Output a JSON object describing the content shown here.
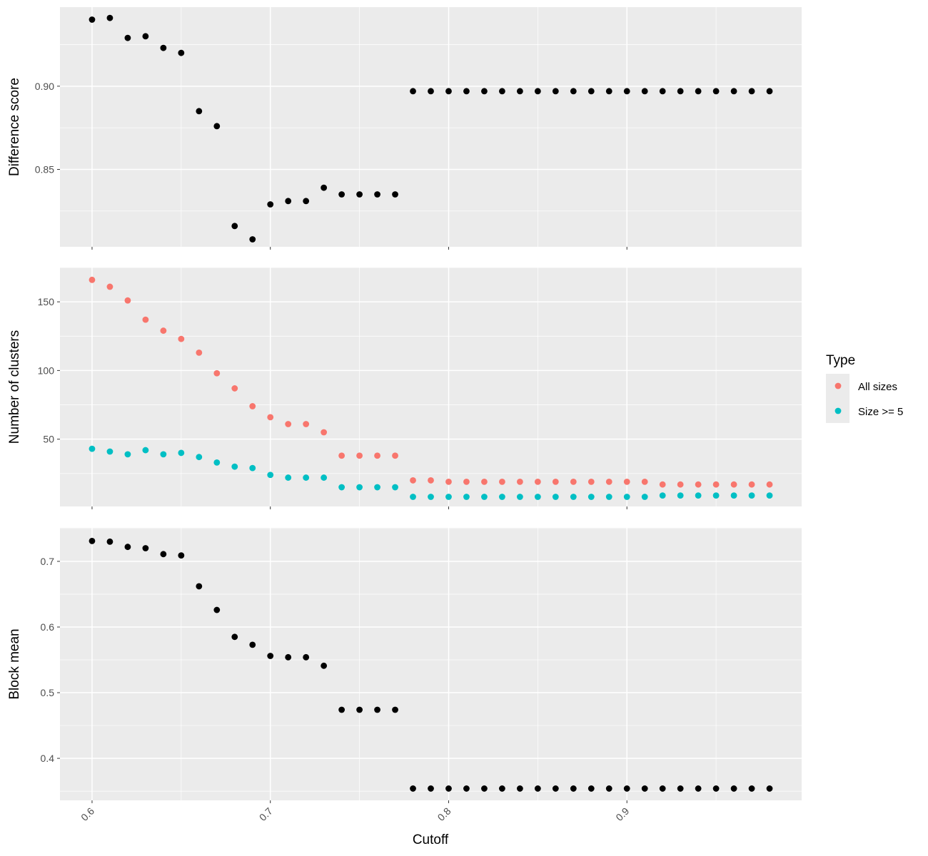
{
  "chart_data": {
    "type": "scatter",
    "xlabel": "Cutoff",
    "x": [
      0.6,
      0.61,
      0.62,
      0.63,
      0.64,
      0.65,
      0.66,
      0.67,
      0.68,
      0.69,
      0.7,
      0.71,
      0.72,
      0.73,
      0.74,
      0.75,
      0.76,
      0.77,
      0.78,
      0.79,
      0.8,
      0.81,
      0.82,
      0.83,
      0.84,
      0.85,
      0.86,
      0.87,
      0.88,
      0.89,
      0.9,
      0.91,
      0.92,
      0.93,
      0.94,
      0.95,
      0.96,
      0.97,
      0.98
    ],
    "xlim": [
      0.582,
      0.998
    ],
    "x_ticks": [
      0.6,
      0.7,
      0.8,
      0.9
    ],
    "x_tick_labels": [
      "0.6",
      "0.7",
      "0.8",
      "0.9"
    ],
    "grid": true,
    "legend_position": "right",
    "legend_title": "Type",
    "panels": [
      {
        "ylabel": "Difference score",
        "ylim": [
          0.8035,
          0.9475
        ],
        "y_ticks": [
          0.85,
          0.9
        ],
        "y_tick_labels": [
          "0.85",
          "0.90"
        ],
        "series": [
          {
            "color": "#000000",
            "values": [
              0.94,
              0.941,
              0.929,
              0.93,
              0.923,
              0.92,
              0.885,
              0.876,
              0.816,
              0.808,
              0.829,
              0.831,
              0.831,
              0.839,
              0.835,
              0.835,
              0.835,
              0.835,
              0.897,
              0.897,
              0.897,
              0.897,
              0.897,
              0.897,
              0.897,
              0.897,
              0.897,
              0.897,
              0.897,
              0.897,
              0.897,
              0.897,
              0.897,
              0.897,
              0.897,
              0.897,
              0.897,
              0.897,
              0.897
            ]
          }
        ]
      },
      {
        "ylabel": "Number of clusters",
        "ylim": [
          1,
          175
        ],
        "y_ticks": [
          50,
          100,
          150
        ],
        "y_tick_labels": [
          "50",
          "100",
          "150"
        ],
        "series": [
          {
            "name": "All sizes",
            "color": "#F8766D",
            "values": [
              166,
              161,
              151,
              137,
              129,
              123,
              113,
              98,
              87,
              74,
              66,
              61,
              61,
              55,
              38,
              38,
              38,
              38,
              20,
              20,
              19,
              19,
              19,
              19,
              19,
              19,
              19,
              19,
              19,
              19,
              19,
              19,
              17,
              17,
              17,
              17,
              17,
              17,
              17
            ]
          },
          {
            "name": "Size >= 5",
            "color": "#00BFC4",
            "values": [
              43,
              41,
              39,
              42,
              39,
              40,
              37,
              33,
              30,
              29,
              24,
              22,
              22,
              22,
              15,
              15,
              15,
              15,
              8,
              8,
              8,
              8,
              8,
              8,
              8,
              8,
              8,
              8,
              8,
              8,
              8,
              8,
              9,
              9,
              9,
              9,
              9,
              9,
              9
            ]
          }
        ]
      },
      {
        "ylabel": "Block mean",
        "ylim": [
          0.336,
          0.751
        ],
        "y_ticks": [
          0.4,
          0.5,
          0.6,
          0.7
        ],
        "y_tick_labels": [
          "0.4",
          "0.5",
          "0.6",
          "0.7"
        ],
        "series": [
          {
            "color": "#000000",
            "values": [
              0.731,
              0.73,
              0.722,
              0.72,
              0.711,
              0.709,
              0.662,
              0.626,
              0.585,
              0.573,
              0.556,
              0.554,
              0.554,
              0.541,
              0.474,
              0.474,
              0.474,
              0.474,
              0.354,
              0.354,
              0.354,
              0.354,
              0.354,
              0.354,
              0.354,
              0.354,
              0.354,
              0.354,
              0.354,
              0.354,
              0.354,
              0.354,
              0.354,
              0.354,
              0.354,
              0.354,
              0.354,
              0.354,
              0.354
            ]
          }
        ]
      }
    ]
  }
}
